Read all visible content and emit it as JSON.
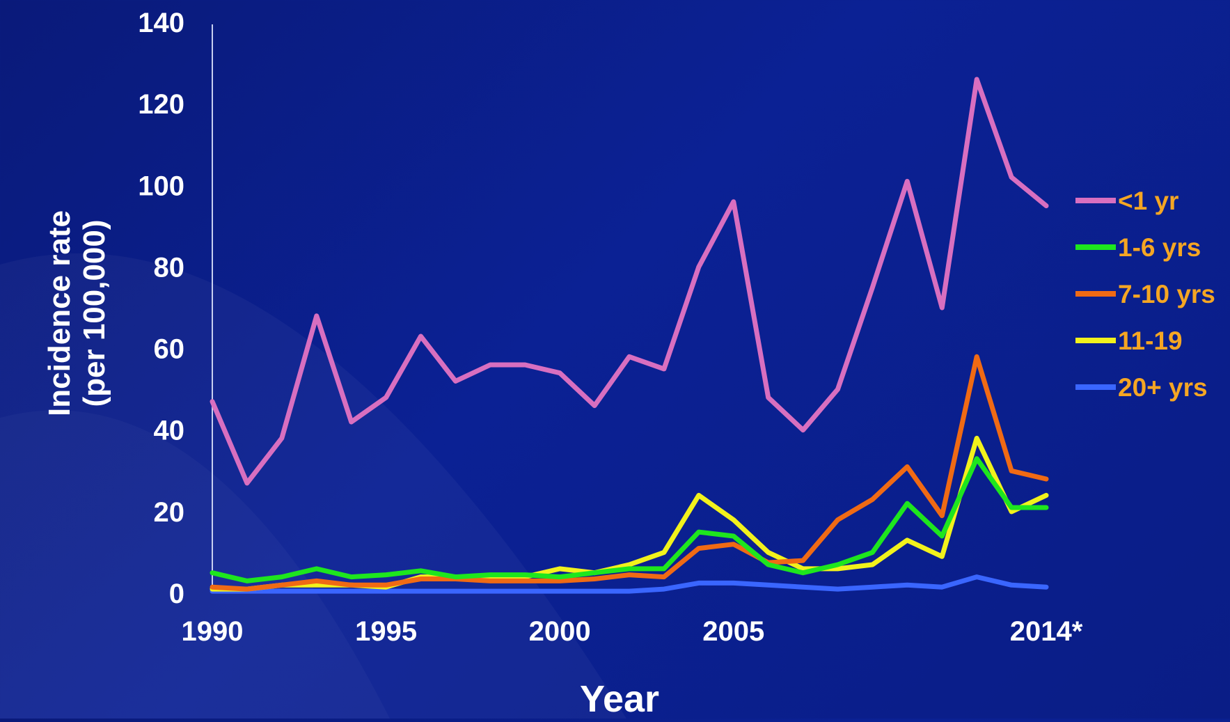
{
  "chart_data": {
    "type": "line",
    "xlabel": "Year",
    "ylabel_line1": "Incidence rate",
    "ylabel_line2": "(per 100,000)",
    "ylim": [
      0,
      140
    ],
    "xlim": [
      1990,
      2014
    ],
    "yticks": [
      0,
      20,
      40,
      60,
      80,
      100,
      120,
      140
    ],
    "xticks": [
      {
        "value": 1990,
        "label": "1990"
      },
      {
        "value": 1995,
        "label": "1995"
      },
      {
        "value": 2000,
        "label": "2000"
      },
      {
        "value": 2005,
        "label": "2005"
      },
      {
        "value": 2014,
        "label": "2014*"
      }
    ],
    "legend_position": "right",
    "x": [
      1990,
      1991,
      1992,
      1993,
      1994,
      1995,
      1996,
      1997,
      1998,
      1999,
      2000,
      2001,
      2002,
      2003,
      2004,
      2005,
      2006,
      2007,
      2008,
      2009,
      2010,
      2011,
      2012,
      2013,
      2014
    ],
    "series": [
      {
        "name": "<1 yr",
        "color": "#d86fc0",
        "values": [
          47,
          27,
          38,
          68,
          42,
          48,
          63,
          52,
          56,
          56,
          54,
          46,
          58,
          55,
          80,
          96,
          48,
          40,
          50,
          75,
          101,
          70,
          126,
          102,
          95
        ]
      },
      {
        "name": "1-6 yrs",
        "color": "#1ee61e",
        "values": [
          5,
          3,
          4,
          6,
          4,
          4.5,
          5.5,
          4,
          4.5,
          4.5,
          4,
          5,
          6,
          6,
          15,
          14,
          7,
          5,
          7,
          10,
          22,
          14,
          33,
          21,
          21
        ]
      },
      {
        "name": "7-10 yrs",
        "color": "#f06a14",
        "values": [
          1.5,
          1,
          2,
          3,
          2,
          2,
          3.5,
          3.5,
          3,
          3,
          3,
          3.5,
          4.5,
          4,
          11,
          12,
          7.5,
          8,
          18,
          23,
          31,
          19,
          58,
          30,
          28
        ]
      },
      {
        "name": "11-19",
        "color": "#f2f21c",
        "values": [
          1,
          1,
          2,
          2,
          2,
          1.5,
          4,
          4,
          4,
          4,
          6,
          5,
          7,
          10,
          24,
          18,
          10,
          6,
          6,
          7,
          13,
          9,
          38,
          20,
          24
        ]
      },
      {
        "name": "20+ yrs",
        "color": "#3a66ff",
        "values": [
          0.5,
          0.5,
          0.5,
          0.5,
          0.5,
          0.5,
          0.5,
          0.5,
          0.5,
          0.5,
          0.5,
          0.5,
          0.5,
          1,
          2.5,
          2.5,
          2,
          1.5,
          1,
          1.5,
          2,
          1.5,
          4,
          2,
          1.5
        ]
      }
    ]
  }
}
